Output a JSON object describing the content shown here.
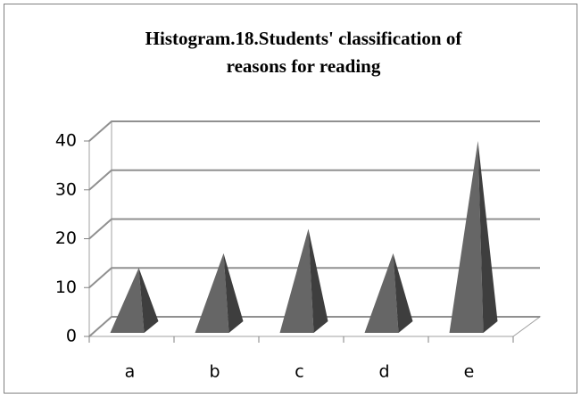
{
  "chart_data": {
    "type": "bar",
    "shape": "pyramid",
    "title": [
      "Histogram.18.Students' classification  of",
      "reasons for reading"
    ],
    "categories": [
      "a",
      "b",
      "c",
      "d",
      "e"
    ],
    "values": [
      12,
      15,
      20,
      15,
      38
    ],
    "color": "#666666",
    "ylim": [
      0,
      40
    ],
    "yticks": [
      0,
      10,
      20,
      30,
      40
    ],
    "grid": true
  }
}
